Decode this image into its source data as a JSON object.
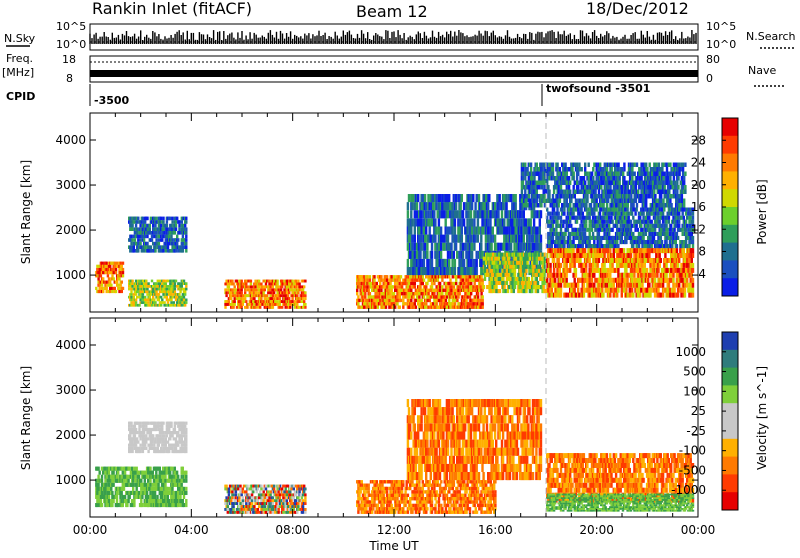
{
  "header": {
    "station": "Rankin Inlet (fitACF)",
    "beam": "Beam 12",
    "date": "18/Dec/2012"
  },
  "summary_panel": {
    "nsky_label": "N.Sky",
    "nsearch_label": "N.Search",
    "noise_ticks_left": [
      "10^5",
      "10^0"
    ],
    "noise_ticks_right": [
      "10^5",
      "10^0"
    ],
    "freq_label": "Freq.",
    "freq_unit": "[MHz]",
    "freq_ticks": [
      "18",
      "8"
    ],
    "nave_label": "Nave",
    "nave_ticks": [
      "80",
      "0"
    ],
    "cpid_label": "CPID",
    "cpid_segments": [
      "-3500",
      "twofsound -3501"
    ]
  },
  "chart_data": [
    {
      "type": "heatmap",
      "panel": "power",
      "ylabel": "Slant Range [km]",
      "xlabel": "",
      "ylim": [
        180,
        4600
      ],
      "x_ticks": [
        "00:00",
        "04:00",
        "08:00",
        "12:00",
        "16:00",
        "20:00",
        "00:00"
      ],
      "y_ticks": [
        1000,
        2000,
        3000,
        4000
      ],
      "colorbar": {
        "label": "Power [dB]",
        "ticks": [
          "28",
          "24",
          "20",
          "16",
          "12",
          "8",
          "4"
        ],
        "colors": [
          "#e60000",
          "#ff3b00",
          "#ff7a00",
          "#ffb000",
          "#cfd800",
          "#6ccf2c",
          "#2f9e5a",
          "#1f6f8f",
          "#1a4fbf",
          "#0a1ee6"
        ]
      },
      "regions": [
        {
          "t": [
            0.2,
            1.3
          ],
          "r": [
            600,
            1300
          ],
          "level": "high"
        },
        {
          "t": [
            1.5,
            3.8
          ],
          "r": [
            300,
            900
          ],
          "level": "mid"
        },
        {
          "t": [
            1.5,
            3.8
          ],
          "r": [
            1500,
            2300
          ],
          "level": "low"
        },
        {
          "t": [
            5.3,
            8.5
          ],
          "r": [
            250,
            900
          ],
          "level": "high"
        },
        {
          "t": [
            10.5,
            15.5
          ],
          "r": [
            250,
            1000
          ],
          "level": "high"
        },
        {
          "t": [
            12.5,
            17.8
          ],
          "r": [
            1000,
            2800
          ],
          "level": "low"
        },
        {
          "t": [
            15.5,
            18.0
          ],
          "r": [
            600,
            1500
          ],
          "level": "mid"
        },
        {
          "t": [
            18.0,
            23.8
          ],
          "r": [
            500,
            1600
          ],
          "level": "high"
        },
        {
          "t": [
            18.0,
            23.8
          ],
          "r": [
            1600,
            2500
          ],
          "level": "low"
        },
        {
          "t": [
            17.0,
            23.5
          ],
          "r": [
            2500,
            3500
          ],
          "level": "low"
        }
      ],
      "time_marker_hours": 18.0
    },
    {
      "type": "heatmap",
      "panel": "velocity",
      "ylabel": "Slant Range [km]",
      "xlabel": "Time UT",
      "ylim": [
        180,
        4600
      ],
      "x_ticks": [
        "00:00",
        "04:00",
        "08:00",
        "12:00",
        "16:00",
        "20:00",
        "00:00"
      ],
      "y_ticks": [
        1000,
        2000,
        3000,
        4000
      ],
      "colorbar": {
        "label": "Velocity [m s^-1]",
        "ticks": [
          "1000",
          "500",
          "100",
          "25",
          "-25",
          "-100",
          "-500",
          "-1000"
        ],
        "colors": [
          "#1f3fb0",
          "#2f7c7c",
          "#39a04a",
          "#7fcf3a",
          "#c8c8c8",
          "#c8c8c8",
          "#ffb000",
          "#ff7a00",
          "#ff3b00",
          "#e60000"
        ]
      },
      "regions": [
        {
          "t": [
            0.2,
            3.8
          ],
          "r": [
            400,
            1300
          ],
          "level": "green"
        },
        {
          "t": [
            1.5,
            3.8
          ],
          "r": [
            1600,
            2300
          ],
          "level": "grey"
        },
        {
          "t": [
            5.3,
            8.5
          ],
          "r": [
            250,
            900
          ],
          "level": "mixed"
        },
        {
          "t": [
            10.5,
            16.0
          ],
          "r": [
            250,
            1000
          ],
          "level": "orange"
        },
        {
          "t": [
            12.5,
            17.8
          ],
          "r": [
            1000,
            2800
          ],
          "level": "orange"
        },
        {
          "t": [
            18.0,
            23.8
          ],
          "r": [
            500,
            1600
          ],
          "level": "orange"
        },
        {
          "t": [
            18.0,
            23.8
          ],
          "r": [
            300,
            700
          ],
          "level": "green"
        }
      ],
      "time_marker_hours": 18.0
    }
  ]
}
